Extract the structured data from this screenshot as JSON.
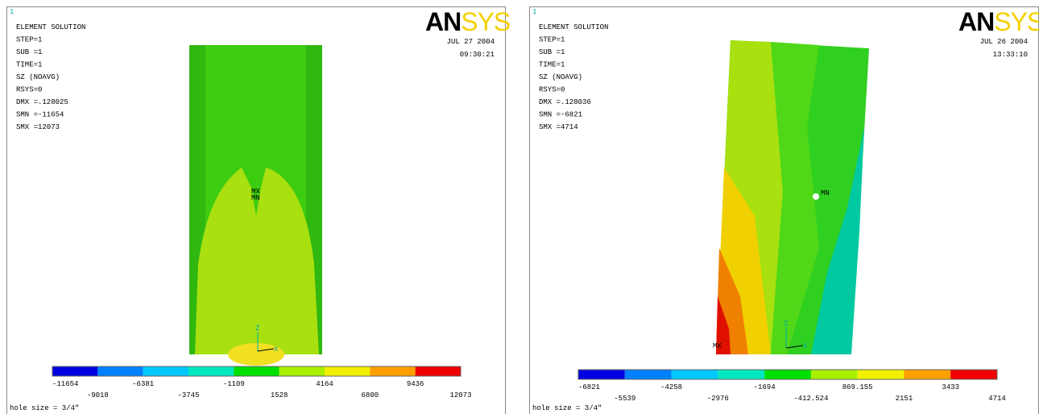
{
  "panels": [
    {
      "corner": "1",
      "header": [
        "ELEMENT SOLUTION",
        "STEP=1",
        "SUB =1",
        "TIME=1",
        "SZ        (NOAVG)",
        "RSYS=0",
        "DMX =.128025",
        "SMN =-11654",
        "SMX =12073"
      ],
      "date": "JUL 27 2004",
      "time": "09:30:21",
      "logo_an": "AN",
      "logo_sys": "SYS",
      "markers": [
        "MX",
        "MN"
      ],
      "axes": [
        "Z",
        "X"
      ],
      "legend": [
        "-11654",
        "-9018",
        "-6381",
        "-3745",
        "-1109",
        "1528",
        "4164",
        "6800",
        "9436",
        "12073"
      ],
      "caption": "hole size = 3/4\""
    },
    {
      "corner": "1",
      "header": [
        "ELEMENT SOLUTION",
        "STEP=1",
        "SUB =1",
        "TIME=1",
        "SZ        (NOAVG)",
        "RSYS=0",
        "DMX =.128036",
        "SMN =-6821",
        "SMX =4714"
      ],
      "date": "JUL 26 2004",
      "time": "13:33:10",
      "logo_an": "AN",
      "logo_sys": "SYS",
      "markers": [
        "MN",
        "MX"
      ],
      "axes": [
        "Z",
        "X"
      ],
      "legend": [
        "-6821",
        "-5539",
        "-4258",
        "-2976",
        "-1694",
        "-412.524",
        "869.155",
        "2151",
        "3433",
        "4714"
      ],
      "caption": "hole size = 3/4\""
    }
  ]
}
